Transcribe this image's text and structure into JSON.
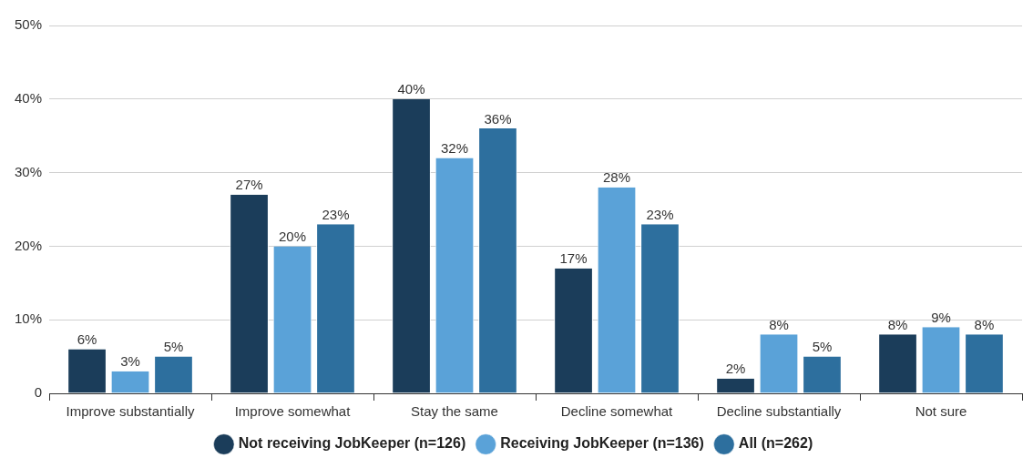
{
  "chart_data": {
    "type": "bar",
    "categories": [
      "Improve substantially",
      "Improve somewhat",
      "Stay the same",
      "Decline somewhat",
      "Decline substantially",
      "Not sure"
    ],
    "series": [
      {
        "name": "Not receiving JobKeeper (n=126)",
        "color": "#1b3d5a",
        "values": [
          6,
          27,
          40,
          17,
          2,
          8
        ],
        "value_labels": [
          "6%",
          "27%",
          "40%",
          "17%",
          "2%",
          "8%"
        ]
      },
      {
        "name": "Receiving JobKeeper (n=136)",
        "color": "#5aa2d8",
        "values": [
          3,
          20,
          32,
          28,
          8,
          9
        ],
        "value_labels": [
          "3%",
          "20%",
          "32%",
          "28%",
          "8%",
          "9%"
        ]
      },
      {
        "name": "All (n=262)",
        "color": "#2d6f9e",
        "values": [
          5,
          23,
          36,
          23,
          5,
          8
        ],
        "value_labels": [
          "5%",
          "23%",
          "36%",
          "23%",
          "5%",
          "8%"
        ]
      }
    ],
    "ylim": [
      0,
      50
    ],
    "yticks": [
      0,
      {
        "value": 10,
        "label": "10%"
      },
      {
        "value": 20,
        "label": "20%"
      },
      {
        "value": 30,
        "label": "30%"
      },
      {
        "value": 40,
        "label": "40%"
      },
      {
        "value": 50,
        "label": "50%"
      }
    ],
    "grid": "y",
    "legend": "bottom"
  }
}
